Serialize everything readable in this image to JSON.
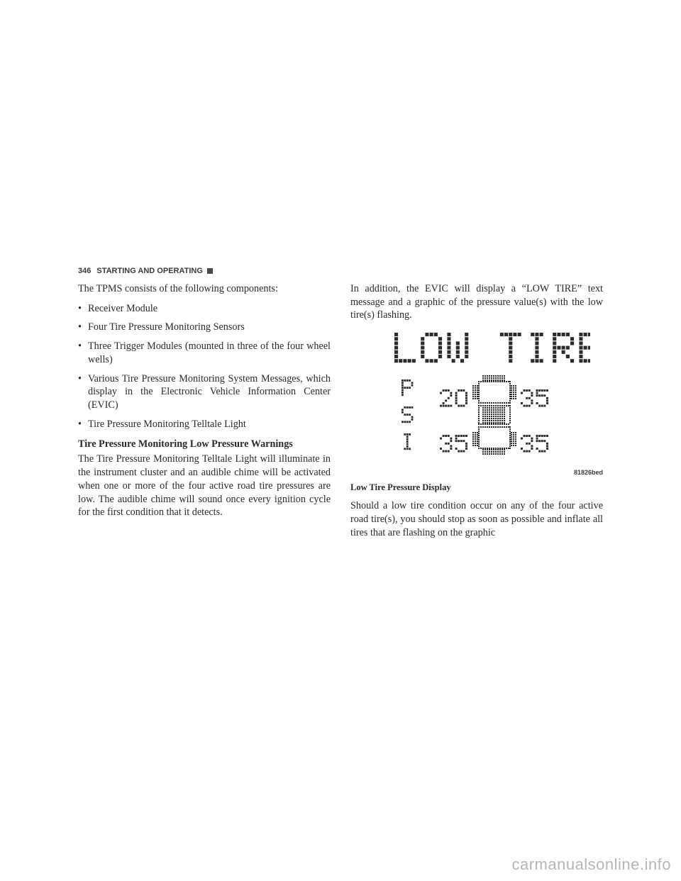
{
  "header": {
    "page_number": "346",
    "section_title": "STARTING AND OPERATING"
  },
  "left_column": {
    "intro": "The TPMS consists of the following components:",
    "bullets": [
      "Receiver Module",
      "Four Tire Pressure Monitoring Sensors",
      "Three Trigger Modules (mounted in three of the four wheel wells)",
      "Various Tire Pressure Monitoring System Messages, which display in the Electronic Vehicle Information Center (EVIC)",
      "Tire Pressure Monitoring Telltale Light"
    ],
    "subhead": "Tire Pressure Monitoring Low Pressure Warnings",
    "body": "The Tire Pressure Monitoring Telltale Light will illuminate in the instrument cluster and an audible chime will be activated when one or more of the four active road tire pressures are low. The audible chime will sound once every ignition cycle for the first condition that it detects."
  },
  "right_column": {
    "intro": "In addition, the EVIC will display a “LOW TIRE” text message and a graphic of the pressure value(s) with the low tire(s) flashing.",
    "figure_caption": "Low Tire Pressure Display",
    "figure_code": "81826bed",
    "after_fig": "Should a low tire condition occur on any of the four active road tire(s), you should stop as soon as possible and inflate all tires that are flashing on the graphic"
  },
  "lcd": {
    "title_text": "LOW TIRE",
    "side_label": "PSI",
    "values": {
      "fl": "20",
      "fr": "35",
      "rl": "35",
      "rr": "35"
    },
    "colors": {
      "dot_on": "#2b2b2b",
      "dot_off": "rgba(0,0,0,0)",
      "bg": "#ffffff"
    },
    "dot_size": 2.2,
    "dot_gap": 0.6
  },
  "watermark": "carmanualsonline.info"
}
